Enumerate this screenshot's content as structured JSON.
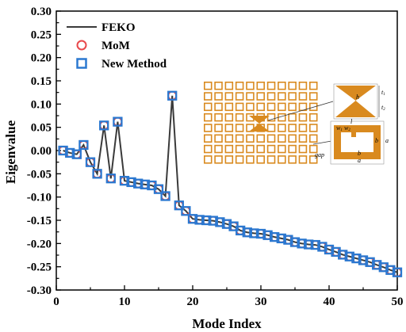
{
  "chart_data": {
    "type": "line",
    "xlabel": "Mode Index",
    "ylabel": "Eigenvalue",
    "xlim": [
      0,
      50
    ],
    "ylim": [
      -0.3,
      0.3
    ],
    "xticks": [
      "0",
      "10",
      "20",
      "30",
      "40",
      "50"
    ],
    "yticks": [
      "0.30",
      "0.25",
      "0.20",
      "0.15",
      "0.10",
      "0.05",
      "0.00",
      "-0.05",
      "-0.10",
      "-0.15",
      "-0.20",
      "-0.25",
      "-0.30"
    ],
    "legend_position": "top-left",
    "grid": false,
    "x": [
      1,
      2,
      3,
      4,
      5,
      6,
      7,
      8,
      9,
      10,
      11,
      12,
      13,
      14,
      15,
      16,
      17,
      18,
      19,
      20,
      21,
      22,
      23,
      24,
      25,
      26,
      27,
      28,
      29,
      30,
      31,
      32,
      33,
      34,
      35,
      36,
      37,
      38,
      39,
      40,
      41,
      42,
      43,
      44,
      45,
      46,
      47,
      48,
      49,
      50
    ],
    "series": [
      {
        "name": "FEKO",
        "style": "line",
        "color": "#3a3a3a",
        "values": [
          0.0,
          -0.005,
          -0.008,
          0.012,
          -0.025,
          -0.05,
          0.054,
          -0.06,
          0.062,
          -0.065,
          -0.068,
          -0.071,
          -0.073,
          -0.075,
          -0.083,
          -0.098,
          0.118,
          -0.118,
          -0.13,
          -0.147,
          -0.149,
          -0.15,
          -0.151,
          -0.154,
          -0.158,
          -0.163,
          -0.172,
          -0.176,
          -0.178,
          -0.179,
          -0.182,
          -0.186,
          -0.189,
          -0.192,
          -0.197,
          -0.2,
          -0.202,
          -0.203,
          -0.207,
          -0.213,
          -0.218,
          -0.224,
          -0.228,
          -0.232,
          -0.236,
          -0.24,
          -0.246,
          -0.251,
          -0.257,
          -0.262
        ]
      },
      {
        "name": "MoM",
        "style": "open-circle",
        "color": "#e8484b",
        "values": [
          0.0,
          -0.005,
          -0.008,
          0.012,
          -0.025,
          -0.05,
          0.054,
          -0.06,
          0.062,
          -0.065,
          -0.068,
          -0.071,
          -0.073,
          -0.075,
          -0.083,
          -0.098,
          0.118,
          -0.118,
          -0.13,
          -0.147,
          -0.149,
          -0.15,
          -0.151,
          -0.154,
          -0.158,
          -0.163,
          -0.172,
          -0.176,
          -0.178,
          -0.179,
          -0.182,
          -0.186,
          -0.189,
          -0.192,
          -0.197,
          -0.2,
          -0.202,
          -0.203,
          -0.207,
          -0.213,
          -0.218,
          -0.224,
          -0.228,
          -0.232,
          -0.236,
          -0.24,
          -0.246,
          -0.251,
          -0.257,
          -0.262
        ]
      },
      {
        "name": "New Method",
        "style": "open-square",
        "color": "#2b78d0",
        "values": [
          0.0,
          -0.005,
          -0.008,
          0.012,
          -0.025,
          -0.05,
          0.054,
          -0.06,
          0.062,
          -0.065,
          -0.068,
          -0.071,
          -0.073,
          -0.075,
          -0.083,
          -0.098,
          0.118,
          -0.118,
          -0.13,
          -0.147,
          -0.149,
          -0.15,
          -0.151,
          -0.154,
          -0.158,
          -0.163,
          -0.172,
          -0.176,
          -0.178,
          -0.179,
          -0.182,
          -0.186,
          -0.189,
          -0.192,
          -0.197,
          -0.2,
          -0.202,
          -0.203,
          -0.207,
          -0.213,
          -0.218,
          -0.224,
          -0.228,
          -0.232,
          -0.236,
          -0.24,
          -0.246,
          -0.251,
          -0.257,
          -0.262
        ]
      }
    ],
    "inset": {
      "description_colors": {
        "metal": "#d98a1f"
      },
      "labels": [
        "t1",
        "t2",
        "h",
        "l",
        "w1",
        "w2",
        "a",
        "b",
        "gap"
      ]
    }
  }
}
